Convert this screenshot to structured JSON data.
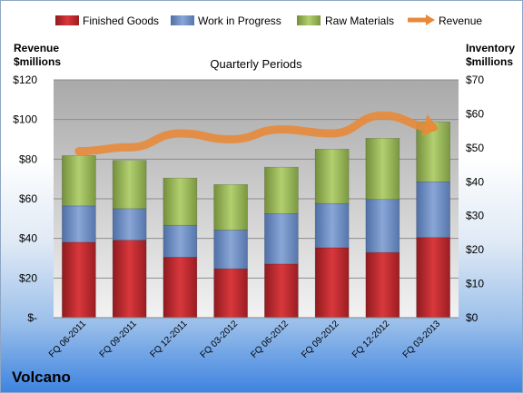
{
  "chart_data": {
    "type": "bar",
    "stacked": true,
    "title": "Quarterly Periods",
    "categories": [
      "FQ 06-2011",
      "FQ 09-2011",
      "FQ 12-2011",
      "FQ 03-2012",
      "FQ 06-2012",
      "FQ 09-2012",
      "FQ 12-2012",
      "FQ 03-2013"
    ],
    "left_axis": {
      "label_line1": "Revenue",
      "label_line2": "$millions",
      "ylim": [
        0,
        120
      ],
      "ticks": [
        "$-",
        "$20",
        "$40",
        "$60",
        "$80",
        "$100",
        "$120"
      ],
      "tick_values": [
        0,
        20,
        40,
        60,
        80,
        100,
        120
      ]
    },
    "right_axis": {
      "label_line1": "Inventory",
      "label_line2": "$millions",
      "ylim": [
        0,
        70
      ],
      "ticks": [
        "$0",
        "$10",
        "$20",
        "$30",
        "$40",
        "$50",
        "$60",
        "$70"
      ],
      "tick_values": [
        0,
        10,
        20,
        30,
        40,
        50,
        60,
        70
      ]
    },
    "series": [
      {
        "name": "Finished Goods",
        "axis": "right",
        "color": "#c0272d",
        "values": [
          22.2,
          22.8,
          17.8,
          14.4,
          15.8,
          20.6,
          19.2,
          23.6
        ]
      },
      {
        "name": "Work in Progress",
        "axis": "right",
        "color": "#6e8fc4",
        "values": [
          10.7,
          9.3,
          9.4,
          11.4,
          14.8,
          13.0,
          15.6,
          16.4
        ]
      },
      {
        "name": "Raw Materials",
        "axis": "right",
        "color": "#9bbd5a",
        "values": [
          14.8,
          14.2,
          13.9,
          13.4,
          13.7,
          16.0,
          18.0,
          17.6
        ]
      },
      {
        "name": "Revenue",
        "axis": "left",
        "type": "line",
        "color": "#e8893a",
        "values": [
          84,
          86,
          93,
          90,
          95,
          93,
          102,
          96
        ]
      }
    ],
    "legend_position": "top",
    "grid": true
  },
  "company": "Volcano"
}
